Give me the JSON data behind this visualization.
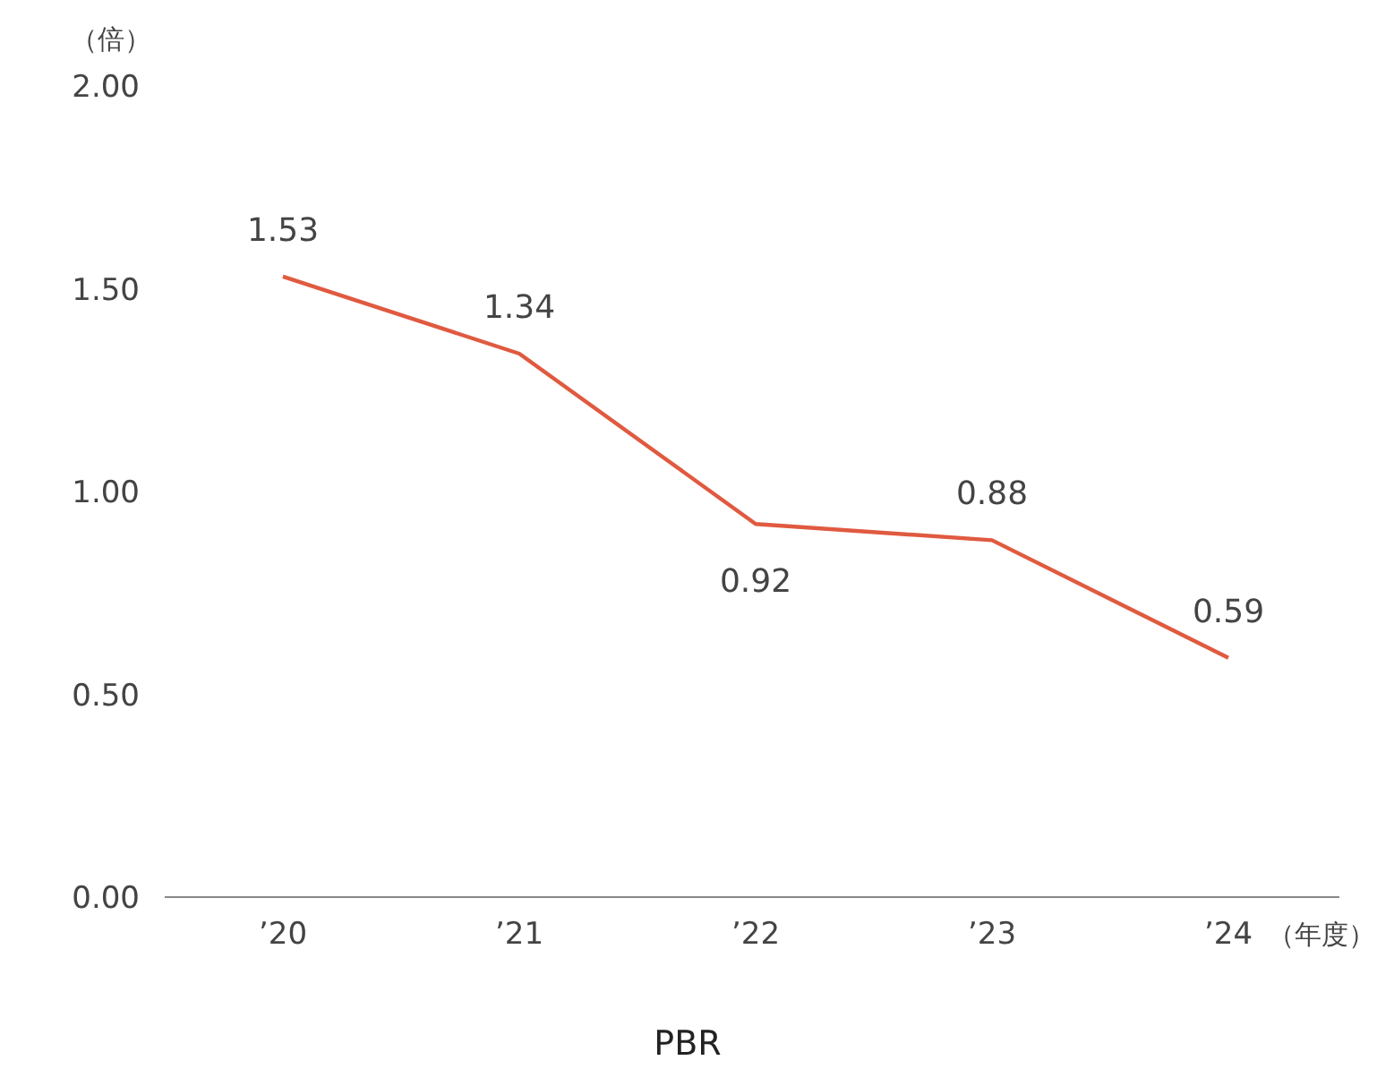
{
  "chart_data": {
    "type": "line",
    "title": "PBR",
    "xlabel": "（年度）",
    "ylabel": "（倍）",
    "categories": [
      "’20",
      "’21",
      "’22",
      "’23",
      "’24"
    ],
    "series": [
      {
        "color": "#e05a40",
        "values": [
          1.53,
          1.34,
          0.92,
          0.88,
          0.59
        ]
      }
    ],
    "ylim": [
      0,
      2
    ],
    "yticks": [
      {
        "value": 0,
        "label": "0.00"
      },
      {
        "value": 0.5,
        "label": "0.50"
      },
      {
        "value": 1,
        "label": "1.00"
      },
      {
        "value": 1.5,
        "label": "1.50"
      },
      {
        "value": 2,
        "label": "2.00"
      }
    ],
    "grid": false,
    "marker": "none",
    "line_style": "solid",
    "data_labels": true
  }
}
